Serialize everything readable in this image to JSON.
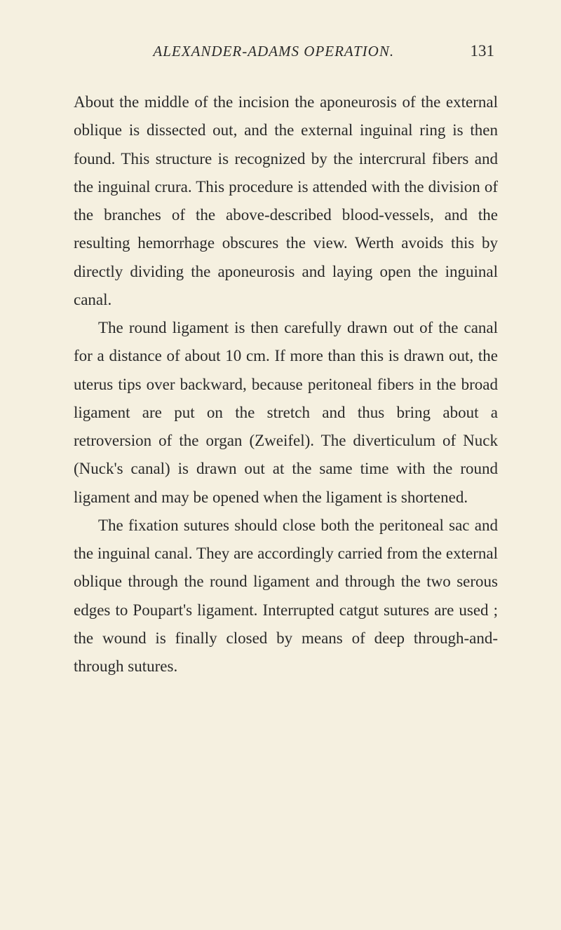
{
  "header": {
    "title": "ALEXANDER-ADAMS OPERATION.",
    "page_number": "131"
  },
  "paragraphs": {
    "p1": "About the middle of the incision the aponeurosis of the external oblique is dissected out, and the external inguinal ring is then found. This structure is recognized by the intercrural fibers and the inguinal crura. This procedure is attended with the division of the branches of the above-described blood-vessels, and the resulting hemor­rhage obscures the view. Werth avoids this by directly dividing the aponeurosis and laying open the inguinal canal.",
    "p2": "The round ligament is then carefully drawn out of the canal for a distance of about 10 cm. If more than this is drawn out, the uterus tips over backward, because peritoneal fibers in the broad ligament are put on the stretch and thus bring about a retroversion of the organ (Zweifel). The diverticulum of Nuck (Nuck's canal) is drawn out at the same time with the round ligament and may be opened when the ligament is shortened.",
    "p3": "The fixation sutures should close both the peritoneal sac and the inguinal canal. They are accordingly carried from the external oblique through the round ligament and through the two serous edges to Poupart's ligament. Interrupted catgut sutures are used ; the wound is finally closed by means of deep through-and-through sutures."
  },
  "styling": {
    "background_color": "#f5f0e0",
    "text_color": "#2a2a2a",
    "body_font_size": 23,
    "header_font_size": 21,
    "page_number_font_size": 23,
    "line_height": 1.75,
    "font_family": "Georgia, Times New Roman, serif"
  }
}
